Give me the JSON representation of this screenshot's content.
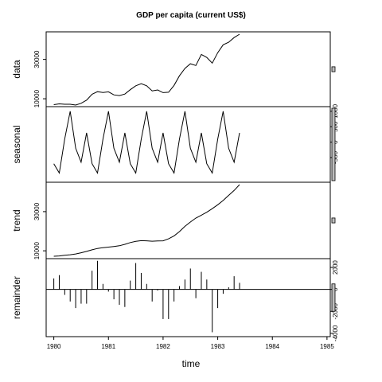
{
  "chart_data": {
    "type": "line",
    "title": "GDP per capita (current US$)",
    "xlabel": "time",
    "x_ticks": [
      "1980",
      "1981",
      "1982",
      "1983",
      "1984",
      "1985"
    ],
    "x_start": 1980.0,
    "x_step": 0.1,
    "xlim": [
      1980,
      1985
    ],
    "panels": [
      {
        "name": "data",
        "label": "data",
        "ylim": [
          6000,
          44000
        ],
        "y_ticks": [
          10000,
          30000
        ],
        "y_tick_labels": [
          "10000",
          "30000"
        ],
        "values": [
          7000,
          7400,
          7200,
          7200,
          6800,
          7700,
          9300,
          12300,
          13600,
          13200,
          13500,
          12000,
          11600,
          12400,
          14600,
          16600,
          17700,
          16600,
          14000,
          14500,
          13100,
          13300,
          16800,
          21700,
          25400,
          27800,
          26900,
          32500,
          31000,
          28100,
          33400,
          37400,
          38700,
          41100,
          42800
        ]
      },
      {
        "name": "seasonal",
        "label": "seasonal",
        "ylim": [
          -1300,
          1150
        ],
        "y_ticks": [
          -500,
          0,
          500,
          1000
        ],
        "y_tick_labels": [
          "-500",
          "0",
          "500",
          "1000"
        ],
        "values": [
          -700,
          -1000,
          100,
          1000,
          -200,
          -650,
          300,
          -700,
          -1000,
          100,
          1000,
          -200,
          -650,
          300,
          -700,
          -1000,
          100,
          1000,
          -200,
          -650,
          300,
          -700,
          -1000,
          100,
          1000,
          -200,
          -650,
          300,
          -700,
          -1000,
          100,
          1000,
          -200,
          -650,
          300
        ]
      },
      {
        "name": "trend",
        "label": "trend",
        "ylim": [
          6000,
          45000
        ],
        "y_ticks": [
          10000,
          30000
        ],
        "y_tick_labels": [
          "10000",
          "30000"
        ],
        "values": [
          7200,
          7400,
          7700,
          8000,
          8400,
          9000,
          9700,
          10500,
          11200,
          11600,
          11900,
          12200,
          12600,
          13300,
          14200,
          14800,
          15200,
          15100,
          14900,
          15000,
          15100,
          16100,
          17600,
          19800,
          22500,
          24700,
          26700,
          28200,
          29700,
          31500,
          33500,
          35700,
          38300,
          40800,
          43800
        ]
      },
      {
        "name": "remainder",
        "label": "remainder",
        "ylim": [
          -4300,
          2800
        ],
        "y_ticks": [
          -4000,
          -2000,
          0,
          2000
        ],
        "y_tick_labels": [
          "-4000",
          "-2000",
          "0",
          "2000"
        ],
        "values": [
          1000,
          1300,
          -500,
          -1100,
          -1700,
          -1300,
          -1300,
          1700,
          2600,
          500,
          -200,
          -900,
          -1400,
          -1600,
          800,
          2400,
          1500,
          500,
          -1100,
          -100,
          -2700,
          -2700,
          -1100,
          300,
          900,
          1900,
          -800,
          1600,
          900,
          -3900,
          -1700,
          -400,
          200,
          1200,
          600
        ]
      }
    ]
  }
}
